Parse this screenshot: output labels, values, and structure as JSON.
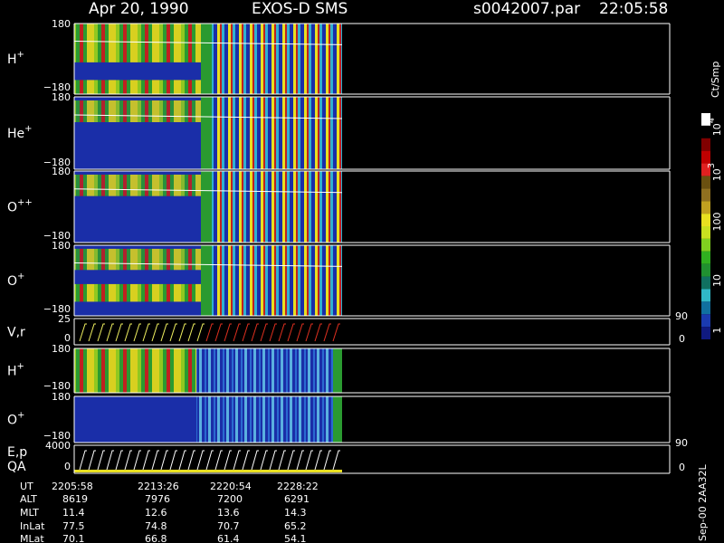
{
  "header": {
    "date": "Apr 20, 1990",
    "instrument": "EXOS-D SMS",
    "file": "s0042007.par",
    "time": "22:05:58"
  },
  "panels": [
    {
      "label": "H",
      "sup": "+",
      "top": "180",
      "bottom": "−180"
    },
    {
      "label": "He",
      "sup": "+",
      "top": "180",
      "bottom": "−180"
    },
    {
      "label": "O",
      "sup": "++",
      "top": "180",
      "bottom": "−180"
    },
    {
      "label": "O",
      "sup": "+",
      "top": "180",
      "bottom": "−180"
    },
    {
      "label": "V,r",
      "top": "25",
      "bottom": "0",
      "right_top": "90",
      "right_bottom": "0"
    },
    {
      "label": "H",
      "sup": "+",
      "top": "180",
      "bottom": "−180"
    },
    {
      "label": "O",
      "sup": "+",
      "top": "180",
      "bottom": "−180"
    },
    {
      "label": "E,p",
      "label2": "QA",
      "top": "4000",
      "bottom": "0",
      "right_top": "90",
      "right_bottom": "0"
    }
  ],
  "colorbar": {
    "unit": "Ct/Smp",
    "labels": [
      {
        "base": "10",
        "sup": "4"
      },
      {
        "base": "10",
        "sup": "3"
      },
      {
        "base": "100"
      },
      {
        "base": "10"
      },
      {
        "base": "1"
      }
    ]
  },
  "footer": {
    "rows": [
      [
        "UT",
        "2205:58",
        "2213:26",
        "2220:54",
        "2228:22"
      ],
      [
        "ALT",
        "8619",
        "7976",
        "7200",
        "6291"
      ],
      [
        "MLT",
        "11.4",
        "12.6",
        "13.6",
        "14.3"
      ],
      [
        "InLat",
        "77.5",
        "74.8",
        "70.7",
        "65.2"
      ],
      [
        "MLat",
        "70.1",
        "66.8",
        "61.4",
        "54.1"
      ]
    ],
    "side": "Sep-00  2AA32L"
  }
}
